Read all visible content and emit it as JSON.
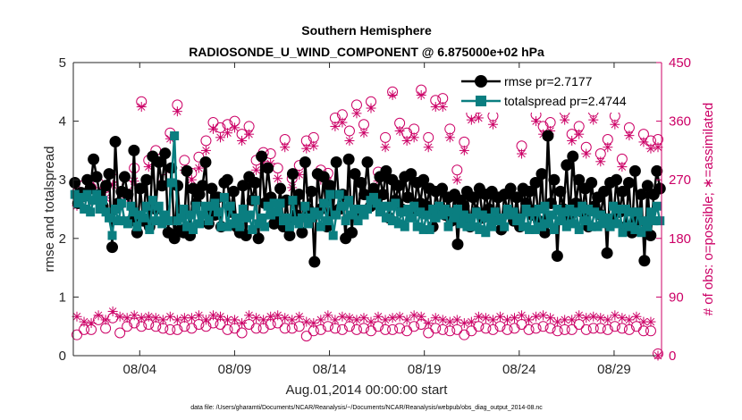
{
  "chart_data": {
    "type": "line",
    "title": "Southern Hemisphere",
    "subtitle": "RADIOSONDE_U_WIND_COMPONENT @ 6.875000e+02 hPa",
    "xlabel": "Aug.01,2014 00:00:00 start",
    "ylabel": "rmse and totalspread",
    "ylabel_right": "# of obs: o=possible; ∗=assimilated",
    "footnote": "data file: /Users/gharamti/Documents/NCAR/Reanalysis/~/Documents/NCAR/Reanalysis/webpub/obs_diag_output_2014-08.nc",
    "xlim": [
      0,
      31
    ],
    "ylim": [
      0,
      5
    ],
    "ylim_right": [
      0,
      450
    ],
    "x_tick_values": [
      3.5,
      8.5,
      13.5,
      18.5,
      23.5,
      28.5
    ],
    "x_tick_labels": [
      "08/04",
      "08/09",
      "08/14",
      "08/19",
      "08/24",
      "08/29"
    ],
    "y_ticks": [
      "0",
      "1",
      "2",
      "3",
      "4",
      "5"
    ],
    "y_ticks_right": [
      "0",
      "90",
      "180",
      "270",
      "360",
      "450"
    ],
    "grid": false,
    "legend_position": "top-right",
    "colors": {
      "rmse": "#000000",
      "totalspread": "#0a7e80",
      "obs": "#cc0066",
      "axis": "#262626"
    },
    "series": [
      {
        "name": "rmse pr=2.7177",
        "values": [
          2.95,
          2.6,
          2.78,
          2.72,
          3.0,
          2.85,
          3.35,
          3.05,
          2.75,
          2.55,
          2.9,
          3.1,
          1.85,
          3.65,
          2.6,
          2.8,
          3.05,
          2.75,
          2.3,
          3.5,
          2.1,
          2.85,
          2.3,
          3.0,
          2.2,
          3.4,
          2.5,
          3.3,
          2.9,
          3.45,
          2.1,
          3.2,
          2.0,
          2.9,
          2.15,
          2.1,
          3.15,
          2.05,
          2.85,
          2.6,
          2.75,
          2.9,
          3.3,
          2.25,
          2.85,
          2.4,
          2.7,
          2.2,
          2.95,
          3.0,
          2.45,
          2.8,
          2.2,
          2.1,
          2.9,
          2.05,
          3.05,
          2.65,
          2.95,
          2.0,
          3.4,
          2.6,
          3.2,
          2.7,
          2.25,
          2.4,
          2.85,
          2.2,
          2.65,
          2.05,
          3.1,
          2.4,
          2.75,
          2.1,
          3.3,
          2.5,
          2.8,
          1.6,
          3.1,
          2.5,
          3.05,
          2.2,
          2.9,
          2.45,
          3.3,
          2.5,
          2.75,
          2.0,
          3.35,
          2.1,
          3.1,
          2.4,
          2.95,
          2.75,
          3.3,
          2.55,
          2.85,
          2.65,
          3.05,
          2.75,
          3.15,
          2.35,
          3.0,
          2.65,
          2.9,
          2.5,
          3.05,
          2.7,
          3.1,
          2.5,
          2.95,
          2.6,
          3.0,
          2.55,
          2.85,
          2.2,
          2.8,
          2.5,
          2.85,
          2.4,
          2.7,
          2.3,
          2.75,
          1.9,
          2.65,
          2.55,
          2.8,
          2.2,
          2.7,
          2.45,
          2.85,
          2.35,
          2.75,
          2.5,
          2.8,
          2.35,
          2.7,
          2.15,
          2.75,
          2.45,
          2.85,
          2.3,
          2.7,
          2.2,
          2.85,
          2.6,
          2.8,
          2.4,
          2.95,
          2.3,
          3.1,
          2.1,
          3.75,
          2.6,
          3.0,
          1.7,
          2.8,
          2.5,
          3.25,
          2.35,
          3.4,
          2.6,
          3.0,
          2.45,
          2.85,
          2.2,
          2.95,
          2.55,
          2.7,
          2.4,
          2.8,
          1.75,
          2.95,
          2.3,
          3.0,
          2.45,
          2.8,
          2.2,
          2.95,
          2.1,
          3.15,
          2.3,
          2.75,
          1.62,
          2.9,
          2.05,
          2.75,
          3.15,
          2.85
        ],
        "marker": "circle"
      },
      {
        "name": "totalspread pr=2.4744",
        "values": [
          2.75,
          2.6,
          2.7,
          2.5,
          2.75,
          2.45,
          2.65,
          2.75,
          2.5,
          2.65,
          2.45,
          2.35,
          2.05,
          2.5,
          2.3,
          2.6,
          2.3,
          2.25,
          2.55,
          2.45,
          2.2,
          2.4,
          2.35,
          2.55,
          2.15,
          2.65,
          2.3,
          2.55,
          2.25,
          2.4,
          2.3,
          2.95,
          3.75,
          2.3,
          2.35,
          2.5,
          2.2,
          2.4,
          2.15,
          2.55,
          2.25,
          2.4,
          2.55,
          2.3,
          2.55,
          2.6,
          2.45,
          2.2,
          2.7,
          2.2,
          2.55,
          2.25,
          2.35,
          2.2,
          2.5,
          2.35,
          2.4,
          2.15,
          2.65,
          2.25,
          2.35,
          2.2,
          2.55,
          2.4,
          2.6,
          2.45,
          2.6,
          2.3,
          2.35,
          2.2,
          2.65,
          2.3,
          2.25,
          2.35,
          2.55,
          2.25,
          2.35,
          2.45,
          2.4,
          2.2,
          2.6,
          2.3,
          2.75,
          2.05,
          2.4,
          2.75,
          2.55,
          2.3,
          2.65,
          2.4,
          2.5,
          2.3,
          2.5,
          2.4,
          2.5,
          2.65,
          2.7,
          2.6,
          2.45,
          2.55,
          2.35,
          2.55,
          2.3,
          2.6,
          2.25,
          2.45,
          2.2,
          2.5,
          2.35,
          2.55,
          2.2,
          2.45,
          2.15,
          2.4,
          2.15,
          2.5,
          2.35,
          2.55,
          2.4,
          2.5,
          2.2,
          2.45,
          2.35,
          2.5,
          2.25,
          2.4,
          2.2,
          2.35,
          2.2,
          2.45,
          2.15,
          2.4,
          2.1,
          2.35,
          2.2,
          2.45,
          2.3,
          2.35,
          2.2,
          2.5,
          2.4,
          2.45,
          2.3,
          2.35,
          2.2,
          2.5,
          2.15,
          2.45,
          2.15,
          2.5,
          2.2,
          2.55,
          2.25,
          2.4,
          2.15,
          2.5,
          2.3,
          2.45,
          2.2,
          2.5,
          2.25,
          2.45,
          2.15,
          2.55,
          2.3,
          2.5,
          2.2,
          2.45,
          2.2,
          2.4,
          2.25,
          2.35,
          2.2,
          2.55,
          2.25,
          2.5,
          2.1,
          2.5,
          2.2,
          2.45,
          2.15,
          2.45,
          2.1,
          2.3,
          2.2,
          2.45,
          2.3,
          2.55,
          2.3
        ],
        "marker": "square"
      },
      {
        "name": "obs possible (o)",
        "axis": "right",
        "marker": "circle-open",
        "high_values": [
          250,
          262,
          258,
          265,
          258,
          272,
          232,
          262,
          288,
          390,
          300,
          315,
          285,
          342,
          385,
          300,
          280,
          305,
          330,
          358,
          350,
          355,
          360,
          340,
          352,
          300,
          312,
          310,
          288,
          332,
          272,
          292,
          330,
          335,
          285,
          280,
          365,
          370,
          345,
          385,
          355,
          390,
          282,
          335,
          405,
          357,
          342,
          348,
          408,
          335,
          392,
          395,
          348,
          285,
          328,
          372,
          380,
          402,
          368,
          408,
          398,
          398,
          322,
          395,
          370,
          352,
          358,
          402,
          375,
          340,
          352,
          320,
          375,
          310,
          332,
          368,
          302,
          350,
          390,
          340,
          330,
          332
        ],
        "low_values": [
          32,
          40,
          40,
          55,
          42,
          58,
          35,
          45,
          50,
          45,
          48,
          45,
          42,
          40,
          40,
          45,
          42,
          48,
          45,
          50,
          48,
          40,
          42,
          35,
          48,
          42,
          42,
          48,
          50,
          42,
          42,
          45,
          30,
          38,
          40,
          45,
          42,
          40,
          45,
          40,
          42,
          38,
          45,
          40,
          40,
          42,
          38,
          45,
          48,
          35,
          42,
          40,
          38,
          40,
          32,
          38,
          45,
          42,
          40,
          45,
          40,
          42,
          48,
          40,
          42,
          45,
          42,
          38,
          40,
          40,
          48,
          40,
          42,
          42,
          40,
          45,
          42,
          40,
          45,
          38,
          38,
          3
        ]
      },
      {
        "name": "obs assimilated (∗)",
        "axis": "right",
        "marker": "asterisk",
        "high_values": [
          230,
          245,
          238,
          248,
          242,
          262,
          210,
          242,
          268,
          382,
          290,
          298,
          265,
          333,
          375,
          285,
          270,
          288,
          315,
          348,
          335,
          342,
          350,
          330,
          340,
          285,
          298,
          295,
          272,
          320,
          258,
          278,
          318,
          322,
          270,
          268,
          352,
          358,
          330,
          372,
          342,
          380,
          268,
          320,
          400,
          345,
          330,
          335,
          400,
          320,
          382,
          382,
          335,
          270,
          315,
          362,
          365,
          390,
          355,
          400,
          390,
          385,
          310,
          388,
          360,
          340,
          345,
          392,
          362,
          330,
          340,
          310,
          362,
          298,
          320,
          355,
          290,
          338,
          382,
          328,
          318,
          320
        ],
        "low_values": [
          60,
          52,
          50,
          62,
          55,
          68,
          60,
          58,
          62,
          58,
          60,
          58,
          55,
          60,
          55,
          58,
          58,
          62,
          55,
          62,
          60,
          55,
          55,
          50,
          62,
          58,
          55,
          60,
          62,
          58,
          55,
          60,
          52,
          50,
          55,
          62,
          55,
          60,
          58,
          55,
          58,
          52,
          60,
          55,
          58,
          60,
          55,
          62,
          60,
          50,
          58,
          55,
          52,
          55,
          50,
          52,
          60,
          58,
          55,
          60,
          55,
          58,
          62,
          55,
          60,
          62,
          58,
          52,
          55,
          55,
          62,
          58,
          60,
          58,
          55,
          62,
          58,
          55,
          60,
          52,
          52,
          0
        ]
      }
    ]
  }
}
